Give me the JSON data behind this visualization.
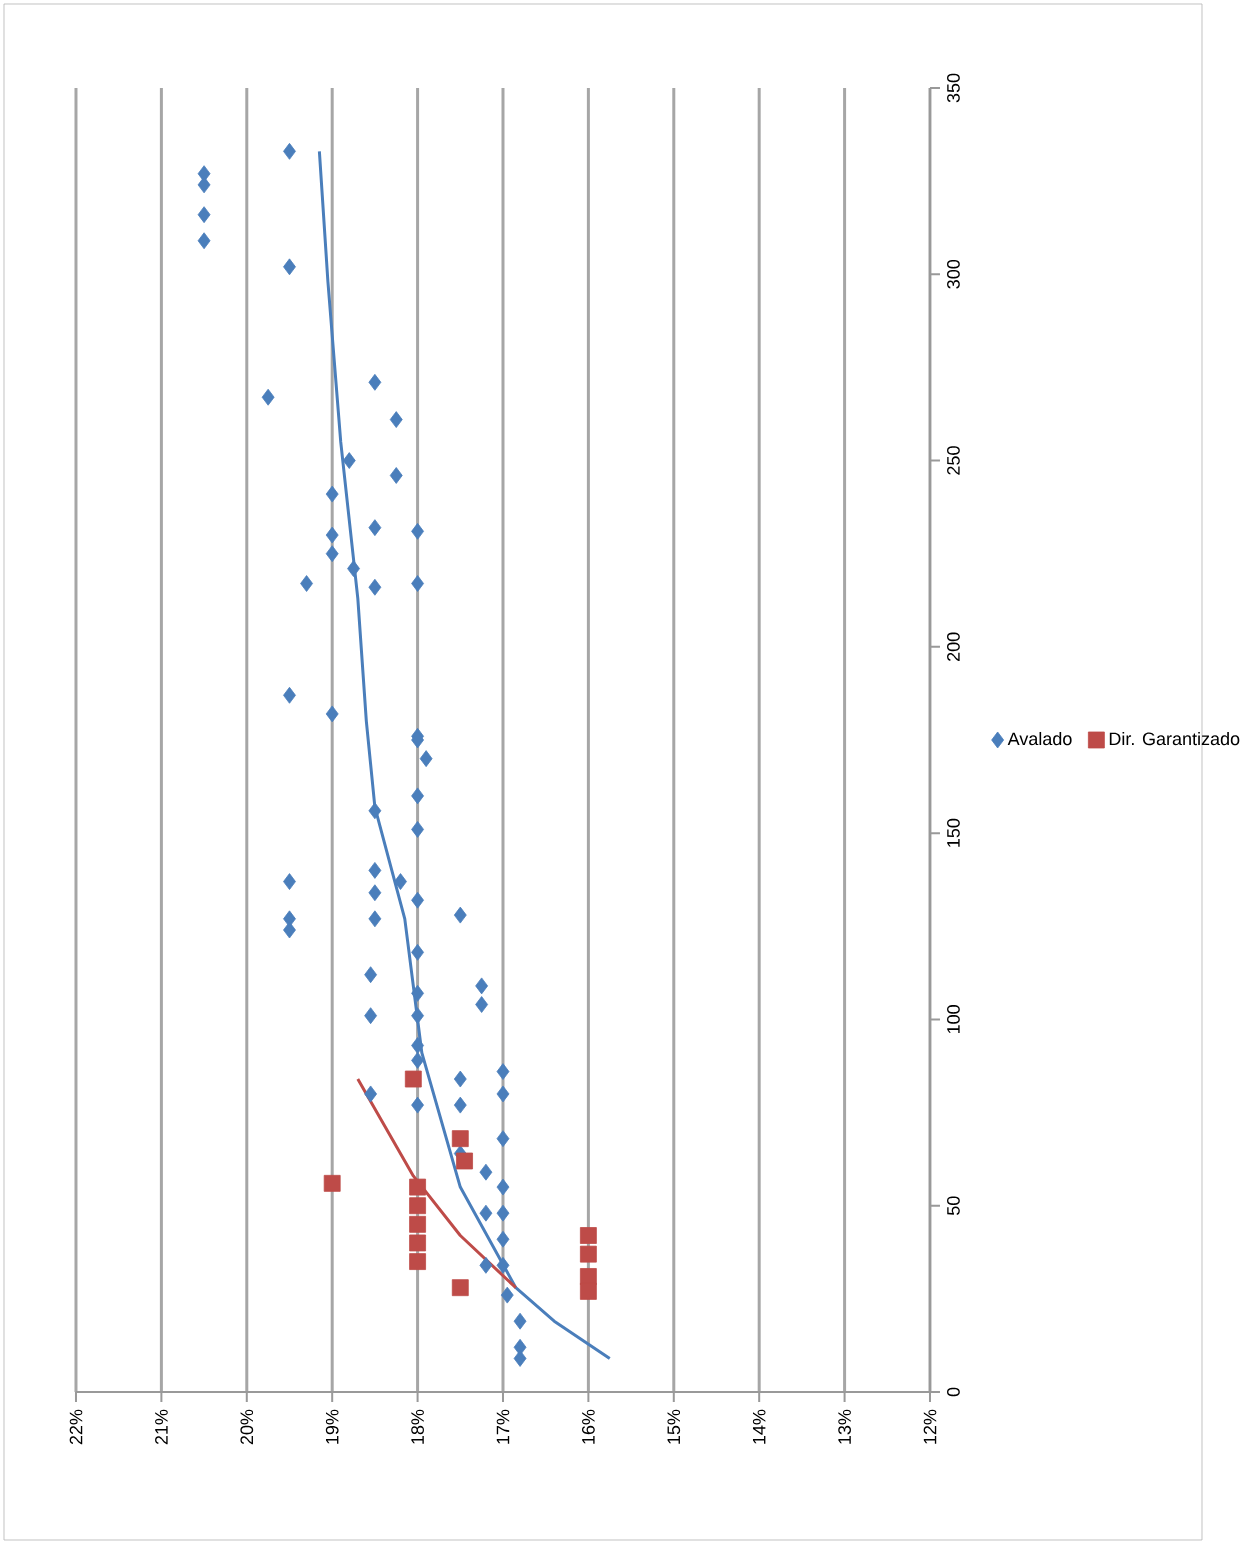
{
  "chart_data": {
    "type": "scatter",
    "xlim": [
      22,
      12
    ],
    "ylim": [
      0,
      350
    ],
    "xticks": [
      {
        "value": 22,
        "label": "22%"
      },
      {
        "value": 21,
        "label": "21%"
      },
      {
        "value": 20,
        "label": "20%"
      },
      {
        "value": 19,
        "label": "19%"
      },
      {
        "value": 18,
        "label": "18%"
      },
      {
        "value": 17,
        "label": "17%"
      },
      {
        "value": 16,
        "label": "16%"
      },
      {
        "value": 15,
        "label": "15%"
      },
      {
        "value": 14,
        "label": "14%"
      },
      {
        "value": 13,
        "label": "13%"
      },
      {
        "value": 12,
        "label": "12%"
      }
    ],
    "yticks": [
      0,
      50,
      100,
      150,
      200,
      250,
      300,
      350
    ],
    "grid": "x",
    "legend": "right",
    "series": [
      {
        "name": "Avalado",
        "color": "#4a7ebb",
        "marker": "diamond",
        "x": [
          20.5,
          20.5,
          20.5,
          20.5,
          19.5,
          19.5,
          19.75,
          18.5,
          18.25,
          18.8,
          18.25,
          19.0,
          18.0,
          19.0,
          18.5,
          19.0,
          18.75,
          19.3,
          18.5,
          18.0,
          19.5,
          19.0,
          18.0,
          18.0,
          17.9,
          18.5,
          18.0,
          18.0,
          19.5,
          19.5,
          19.5,
          18.5,
          18.5,
          18.5,
          18.2,
          18.0,
          17.5,
          18.0,
          18.55,
          18.55,
          18.0,
          18.0,
          17.25,
          17.25,
          18.0,
          18.0,
          18.55,
          18.0,
          17.5,
          17.0,
          17.0,
          17.5,
          17.0,
          17.5,
          17.2,
          17.0,
          17.0,
          17.0,
          17.0,
          16.95,
          16.8,
          16.8,
          16.8,
          17.2,
          17.2
        ],
        "values": [
          327,
          324,
          316,
          309,
          333,
          302,
          267,
          271,
          261,
          250,
          246,
          241,
          231,
          230,
          232,
          225,
          221,
          217,
          216,
          217,
          187,
          182,
          176,
          175,
          170,
          156,
          160,
          151,
          137,
          127,
          124,
          140,
          134,
          127,
          137,
          132,
          128,
          118,
          112,
          101,
          107,
          101,
          109,
          104,
          93,
          89,
          80,
          77,
          84,
          86,
          80,
          77,
          68,
          64,
          59,
          55,
          48,
          41,
          34,
          26,
          19,
          12,
          9,
          48,
          34
        ]
      },
      {
        "name": "Dir. Garantizado",
        "color": "#be4b48",
        "marker": "square",
        "x": [
          18.05,
          17.5,
          17.45,
          19.0,
          18.0,
          18.0,
          18.0,
          18.0,
          18.0,
          17.5,
          16.0,
          16.0,
          16.0,
          16.0
        ],
        "values": [
          84,
          68,
          62,
          56,
          55,
          50,
          45,
          40,
          35,
          28,
          42,
          37,
          31,
          27
        ]
      },
      {
        "type": "line",
        "color": "#4a7ebb",
        "marker": "none",
        "x": [
          19.15,
          19.05,
          18.9,
          18.7,
          18.6,
          18.5,
          18.15,
          17.95,
          17.5,
          16.85,
          16.4,
          15.75
        ],
        "values": [
          333,
          298,
          255,
          213,
          180,
          157,
          127,
          91,
          55,
          28,
          19,
          9
        ]
      },
      {
        "type": "line",
        "color": "#be4b48",
        "marker": "none",
        "x": [
          18.7,
          18.05,
          17.5,
          16.85
        ],
        "values": [
          84,
          58,
          42,
          28
        ]
      }
    ]
  }
}
